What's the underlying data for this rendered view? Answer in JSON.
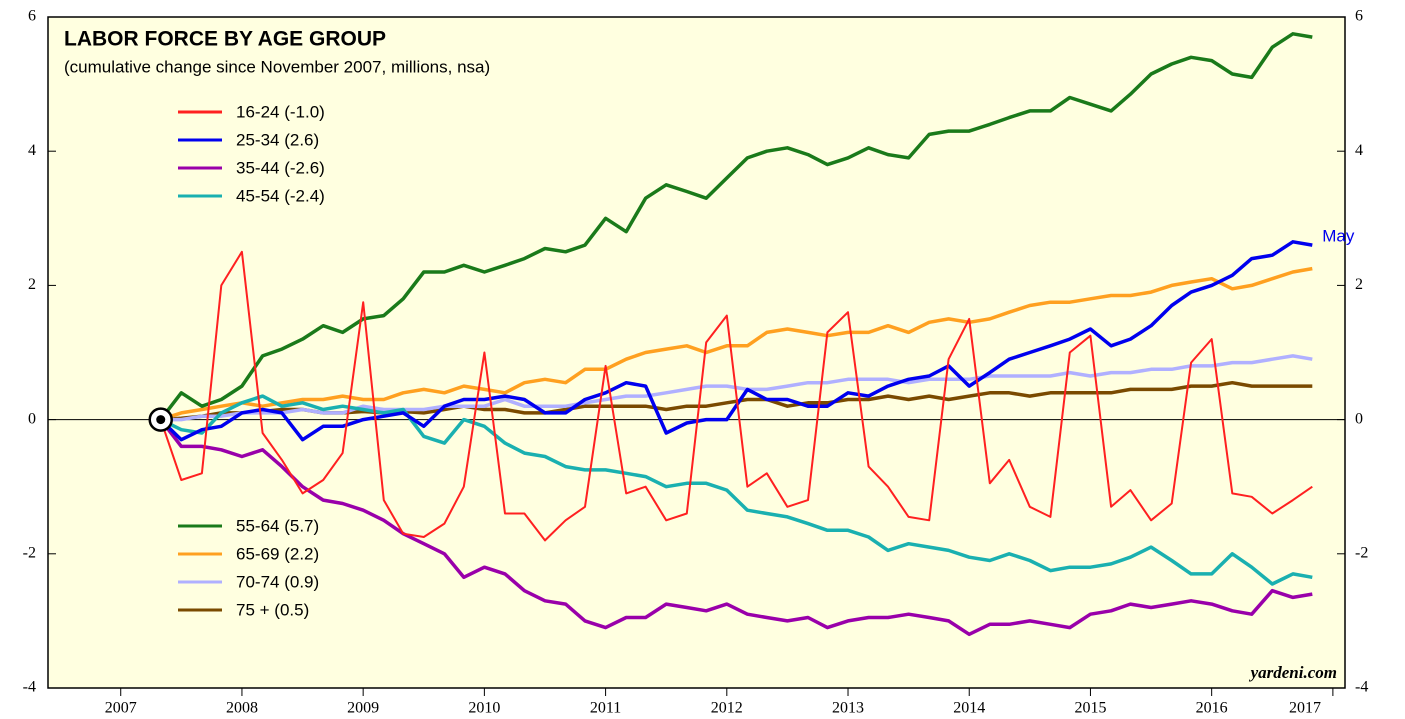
{
  "chart_data": {
    "type": "line",
    "title": "LABOR FORCE BY AGE GROUP",
    "subtitle": "(cumulative change since November 2007, millions, nsa)",
    "annotations": [
      "May",
      "yardeni.com"
    ],
    "x": [
      2007.83,
      2008,
      2008.17,
      2008.33,
      2008.5,
      2008.67,
      2008.83,
      2009,
      2009.17,
      2009.33,
      2009.5,
      2009.67,
      2009.83,
      2010,
      2010.17,
      2010.33,
      2010.5,
      2010.67,
      2010.83,
      2011,
      2011.17,
      2011.33,
      2011.5,
      2011.67,
      2011.83,
      2012,
      2012.17,
      2012.33,
      2012.5,
      2012.67,
      2012.83,
      2013,
      2013.17,
      2013.33,
      2013.5,
      2013.67,
      2013.83,
      2014,
      2014.17,
      2014.33,
      2014.5,
      2014.67,
      2014.83,
      2015,
      2015.17,
      2015.33,
      2015.5,
      2015.67,
      2015.83,
      2016,
      2016.17,
      2016.33,
      2016.5,
      2016.67,
      2016.83,
      2017,
      2017.17,
      2017.33
    ],
    "series": [
      {
        "name": "16-24 (-1.0)",
        "color": "#ff2020",
        "values": [
          0,
          -0.9,
          -0.8,
          2.0,
          2.5,
          -0.2,
          -0.6,
          -1.1,
          -0.9,
          -0.5,
          1.75,
          -1.2,
          -1.7,
          -1.75,
          -1.55,
          -1.0,
          1.0,
          -1.4,
          -1.4,
          -1.8,
          -1.5,
          -1.3,
          0.8,
          -1.1,
          -1.0,
          -1.5,
          -1.4,
          1.15,
          1.55,
          -1.0,
          -0.8,
          -1.3,
          -1.2,
          1.3,
          1.6,
          -0.7,
          -1.0,
          -1.45,
          -1.5,
          0.9,
          1.5,
          -0.95,
          -0.6,
          -1.3,
          -1.45,
          1.0,
          1.25,
          -1.3,
          -1.05,
          -1.5,
          -1.25,
          0.85,
          1.2,
          -1.1,
          -1.15,
          -1.4,
          -1.2,
          -1.0
        ]
      },
      {
        "name": "25-34 (2.6)",
        "color": "#0000ee",
        "values": [
          0,
          -0.3,
          -0.15,
          -0.1,
          0.1,
          0.15,
          0.1,
          -0.3,
          -0.1,
          -0.1,
          0.0,
          0.05,
          0.1,
          -0.1,
          0.2,
          0.3,
          0.3,
          0.35,
          0.3,
          0.1,
          0.1,
          0.3,
          0.4,
          0.55,
          0.5,
          -0.2,
          -0.05,
          0.0,
          0.0,
          0.45,
          0.3,
          0.3,
          0.2,
          0.2,
          0.4,
          0.35,
          0.5,
          0.6,
          0.65,
          0.8,
          0.5,
          0.7,
          0.9,
          1.0,
          1.1,
          1.2,
          1.35,
          1.1,
          1.2,
          1.4,
          1.7,
          1.9,
          2.0,
          2.15,
          2.4,
          2.45,
          2.65,
          2.6
        ]
      },
      {
        "name": "35-44 (-2.6)",
        "color": "#9900aa",
        "values": [
          0,
          -0.4,
          -0.4,
          -0.45,
          -0.55,
          -0.45,
          -0.7,
          -1.0,
          -1.2,
          -1.25,
          -1.35,
          -1.5,
          -1.7,
          -1.85,
          -2.0,
          -2.35,
          -2.2,
          -2.3,
          -2.55,
          -2.7,
          -2.75,
          -3.0,
          -3.1,
          -2.95,
          -2.95,
          -2.75,
          -2.8,
          -2.85,
          -2.75,
          -2.9,
          -2.95,
          -3.0,
          -2.95,
          -3.1,
          -3.0,
          -2.95,
          -2.95,
          -2.9,
          -2.95,
          -3.0,
          -3.2,
          -3.05,
          -3.05,
          -3.0,
          -3.05,
          -3.1,
          -2.9,
          -2.85,
          -2.75,
          -2.8,
          -2.75,
          -2.7,
          -2.75,
          -2.85,
          -2.9,
          -2.55,
          -2.65,
          -2.6
        ]
      },
      {
        "name": "45-54 (-2.4)",
        "color": "#1ab0b0",
        "values": [
          0,
          -0.15,
          -0.2,
          0.1,
          0.25,
          0.35,
          0.2,
          0.25,
          0.15,
          0.2,
          0.15,
          0.1,
          0.15,
          -0.25,
          -0.35,
          0.0,
          -0.1,
          -0.35,
          -0.5,
          -0.55,
          -0.7,
          -0.75,
          -0.75,
          -0.8,
          -0.85,
          -1.0,
          -0.95,
          -0.95,
          -1.05,
          -1.35,
          -1.4,
          -1.45,
          -1.55,
          -1.65,
          -1.65,
          -1.75,
          -1.95,
          -1.85,
          -1.9,
          -1.95,
          -2.05,
          -2.1,
          -2.0,
          -2.1,
          -2.25,
          -2.2,
          -2.2,
          -2.15,
          -2.05,
          -1.9,
          -2.1,
          -2.3,
          -2.3,
          -2.0,
          -2.2,
          -2.45,
          -2.3,
          -2.35
        ]
      },
      {
        "name": "55-64 (5.7)",
        "color": "#1a7a1a",
        "values": [
          0,
          0.4,
          0.2,
          0.3,
          0.5,
          0.95,
          1.05,
          1.2,
          1.4,
          1.3,
          1.5,
          1.55,
          1.8,
          2.2,
          2.2,
          2.3,
          2.2,
          2.3,
          2.4,
          2.55,
          2.5,
          2.6,
          3.0,
          2.8,
          3.3,
          3.5,
          3.4,
          3.3,
          3.6,
          3.9,
          4.0,
          4.05,
          3.95,
          3.8,
          3.9,
          4.05,
          3.95,
          3.9,
          4.25,
          4.3,
          4.3,
          4.4,
          4.5,
          4.6,
          4.6,
          4.8,
          4.7,
          4.6,
          4.85,
          5.15,
          5.3,
          5.4,
          5.35,
          5.15,
          5.1,
          5.55,
          5.75,
          5.7
        ]
      },
      {
        "name": "65-69 (2.2)",
        "color": "#ffa020",
        "values": [
          0,
          0.1,
          0.15,
          0.2,
          0.25,
          0.2,
          0.25,
          0.3,
          0.3,
          0.35,
          0.3,
          0.3,
          0.4,
          0.45,
          0.4,
          0.5,
          0.45,
          0.4,
          0.55,
          0.6,
          0.55,
          0.75,
          0.75,
          0.9,
          1.0,
          1.05,
          1.1,
          1.0,
          1.1,
          1.1,
          1.3,
          1.35,
          1.3,
          1.25,
          1.3,
          1.3,
          1.4,
          1.3,
          1.45,
          1.5,
          1.45,
          1.5,
          1.6,
          1.7,
          1.75,
          1.75,
          1.8,
          1.85,
          1.85,
          1.9,
          2.0,
          2.05,
          2.1,
          1.95,
          2.0,
          2.1,
          2.2,
          2.25
        ]
      },
      {
        "name": "70-74 (0.9)",
        "color": "#b0b0ff",
        "values": [
          0,
          0.0,
          0.05,
          0.05,
          0.1,
          0.1,
          0.1,
          0.15,
          0.1,
          0.1,
          0.2,
          0.15,
          0.15,
          0.15,
          0.2,
          0.2,
          0.2,
          0.3,
          0.2,
          0.2,
          0.2,
          0.25,
          0.3,
          0.35,
          0.35,
          0.4,
          0.45,
          0.5,
          0.5,
          0.45,
          0.45,
          0.5,
          0.55,
          0.55,
          0.6,
          0.6,
          0.6,
          0.55,
          0.6,
          0.6,
          0.6,
          0.65,
          0.65,
          0.65,
          0.65,
          0.7,
          0.65,
          0.7,
          0.7,
          0.75,
          0.75,
          0.8,
          0.8,
          0.85,
          0.85,
          0.9,
          0.95,
          0.9
        ]
      },
      {
        "name": "75 + (0.5)",
        "color": "#7a4a00",
        "values": [
          0,
          0.02,
          0.05,
          0.1,
          0.1,
          0.12,
          0.15,
          0.15,
          0.1,
          0.1,
          0.12,
          0.1,
          0.12,
          0.1,
          0.15,
          0.2,
          0.15,
          0.15,
          0.1,
          0.1,
          0.15,
          0.2,
          0.2,
          0.2,
          0.2,
          0.15,
          0.2,
          0.2,
          0.25,
          0.3,
          0.3,
          0.2,
          0.25,
          0.25,
          0.3,
          0.3,
          0.35,
          0.3,
          0.35,
          0.3,
          0.35,
          0.4,
          0.4,
          0.35,
          0.4,
          0.4,
          0.4,
          0.4,
          0.45,
          0.45,
          0.45,
          0.5,
          0.5,
          0.55,
          0.5,
          0.5,
          0.5,
          0.5
        ]
      }
    ],
    "xlim": [
      2006.9,
      2017.6
    ],
    "xticks": [
      {
        "value": 2007.5,
        "label": "2007"
      },
      {
        "value": 2008.5,
        "label": "2008"
      },
      {
        "value": 2009.5,
        "label": "2009"
      },
      {
        "value": 2010.5,
        "label": "2010"
      },
      {
        "value": 2011.5,
        "label": "2011"
      },
      {
        "value": 2012.5,
        "label": "2012"
      },
      {
        "value": 2013.5,
        "label": "2013"
      },
      {
        "value": 2014.5,
        "label": "2014"
      },
      {
        "value": 2015.5,
        "label": "2015"
      },
      {
        "value": 2016.5,
        "label": "2016"
      },
      {
        "value": 2017.5,
        "label": "2017"
      }
    ],
    "ylim": [
      -4,
      6
    ],
    "yticks": [
      -4,
      -2,
      0,
      2,
      4,
      6
    ]
  }
}
